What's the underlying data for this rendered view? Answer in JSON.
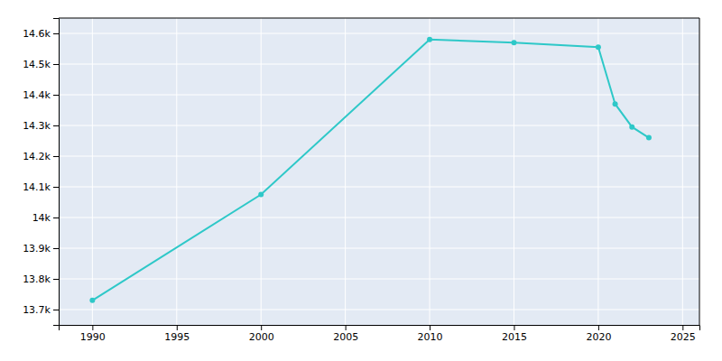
{
  "chart_data": {
    "type": "line",
    "x": [
      1990,
      2000,
      2010,
      2015,
      2020,
      2021,
      2022,
      2023
    ],
    "values": [
      13730,
      14075,
      14580,
      14570,
      14555,
      14370,
      14295,
      14260
    ],
    "color": "#2EC8C8",
    "marker": "circle",
    "xlim": [
      1988,
      2026
    ],
    "ylim": [
      13650,
      14650
    ],
    "xticks": [
      1990,
      1995,
      2000,
      2005,
      2010,
      2015,
      2020,
      2025
    ],
    "yticks": [
      {
        "value": 13700,
        "label": "13.7k"
      },
      {
        "value": 13800,
        "label": "13.8k"
      },
      {
        "value": 13900,
        "label": "13.9k"
      },
      {
        "value": 14000,
        "label": "14k"
      },
      {
        "value": 14100,
        "label": "14.1k"
      },
      {
        "value": 14200,
        "label": "14.2k"
      },
      {
        "value": 14300,
        "label": "14.3k"
      },
      {
        "value": 14400,
        "label": "14.4k"
      },
      {
        "value": 14500,
        "label": "14.5k"
      },
      {
        "value": 14600,
        "label": "14.6k"
      }
    ],
    "grid": true
  }
}
